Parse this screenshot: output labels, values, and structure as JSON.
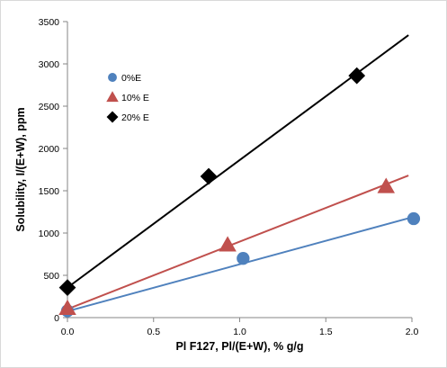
{
  "chart_data": {
    "type": "scatter",
    "xlabel": "Pl F127, Pl/(E+W), % g/g",
    "ylabel": "Solubility, I/(E+W), ppm",
    "xlim": [
      0,
      2.0
    ],
    "ylim": [
      0,
      3500
    ],
    "x_ticks": [
      "0.0",
      "0.5",
      "1.0",
      "1.5",
      "2.0"
    ],
    "y_ticks": [
      "0",
      "500",
      "1000",
      "1500",
      "2000",
      "2500",
      "3000",
      "3500"
    ],
    "grid": false,
    "legend_position": "top-left",
    "series": [
      {
        "name": "0%E",
        "color": "#4f81bd",
        "marker": "circle",
        "points": [
          [
            0.0,
            80
          ],
          [
            1.02,
            700
          ],
          [
            2.01,
            1170
          ]
        ],
        "trendline": [
          [
            0.0,
            75
          ],
          [
            1.98,
            1175
          ]
        ]
      },
      {
        "name": "10% E",
        "color": "#c0504d",
        "marker": "triangle",
        "points": [
          [
            0.0,
            110
          ],
          [
            0.93,
            860
          ],
          [
            1.85,
            1550
          ]
        ],
        "trendline": [
          [
            0.0,
            100
          ],
          [
            1.98,
            1680
          ]
        ]
      },
      {
        "name": "20% E",
        "color": "#000000",
        "marker": "diamond",
        "points": [
          [
            0.0,
            355
          ],
          [
            0.82,
            1670
          ],
          [
            1.68,
            2860
          ]
        ],
        "trendline": [
          [
            0.0,
            355
          ],
          [
            1.98,
            3340
          ]
        ]
      }
    ]
  }
}
